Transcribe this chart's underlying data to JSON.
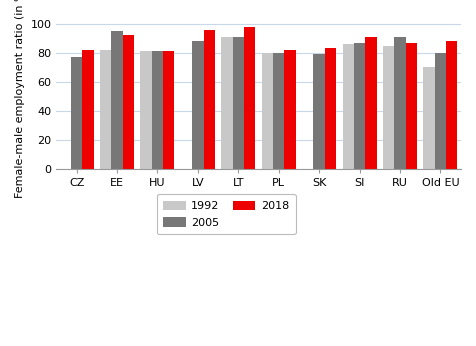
{
  "categories": [
    "CZ",
    "EE",
    "HU",
    "LV",
    "LT",
    "PL",
    "SK",
    "SI",
    "RU",
    "Old EU"
  ],
  "series": {
    "1992": [
      0,
      82,
      81,
      0,
      91,
      80,
      0,
      86,
      85,
      70
    ],
    "2005": [
      77,
      95,
      81,
      88,
      91,
      80,
      79,
      87,
      91,
      80
    ],
    "2018": [
      82,
      92,
      81,
      96,
      98,
      82,
      83,
      91,
      87,
      88
    ]
  },
  "colors": {
    "1992": "#c8c8c8",
    "2005": "#777777",
    "2018": "#ee0000"
  },
  "ylabel": "Female-male employment ratio (in %)",
  "ylim": [
    0,
    106
  ],
  "yticks": [
    0,
    20,
    40,
    60,
    80,
    100
  ],
  "legend_labels": [
    "1992",
    "2005",
    "2018"
  ],
  "bar_width": 0.28,
  "bg_color": "#ffffff",
  "grid_color": "#c8d8e8"
}
